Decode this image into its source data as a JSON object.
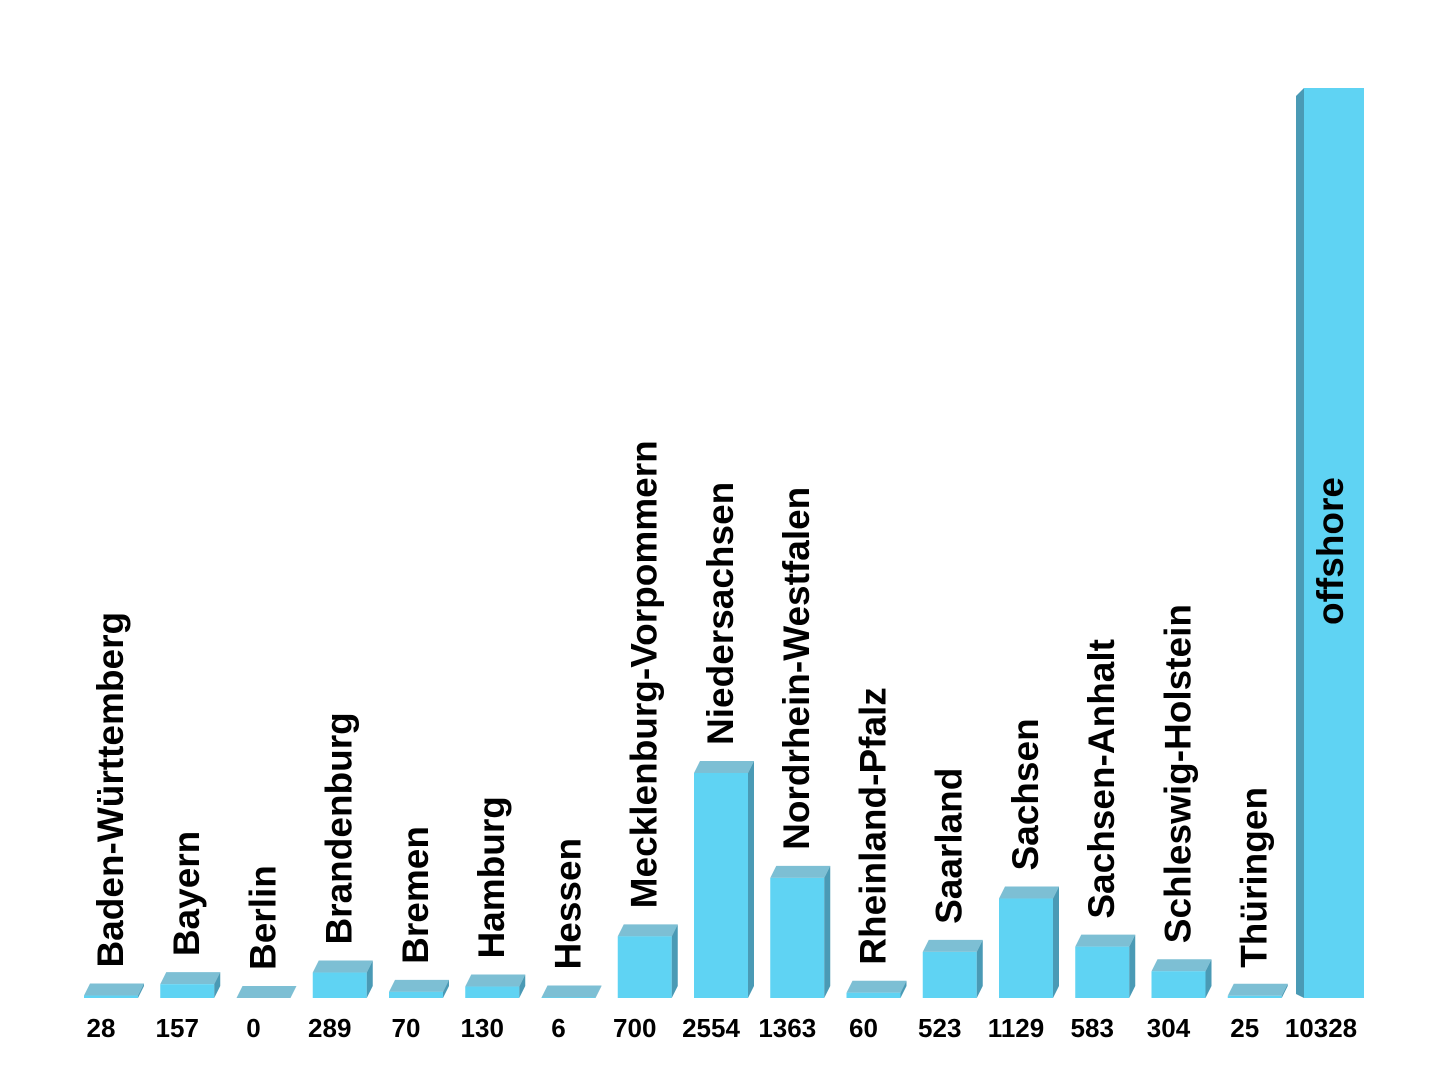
{
  "colors": {
    "bar_front": "#5fd3f3",
    "bar_top": "#7dbfd4",
    "bar_side": "#4a9ab5",
    "text": "#000000",
    "background": "#ffffff"
  },
  "chart_data": {
    "type": "bar",
    "categories": [
      "Baden-Württemberg",
      "Bayern",
      "Berlin",
      "Brandenburg",
      "Bremen",
      "Hamburg",
      "Hessen",
      "Mecklenburg-Vorpommern",
      "Niedersachsen",
      "Nordrhein-Westfalen",
      "Rheinland-Pfalz",
      "Saarland",
      "Sachsen",
      "Sachsen-Anhalt",
      "Schleswig-Holstein",
      "Thüringen",
      "offshore"
    ],
    "values": [
      28,
      157,
      0,
      289,
      70,
      130,
      6,
      700,
      2554,
      1363,
      60,
      523,
      1129,
      583,
      304,
      25,
      10328
    ],
    "value_labels": [
      "28",
      "157",
      "0",
      "289",
      "70",
      "130",
      "6",
      "700",
      "2554",
      "1363",
      "60",
      "523",
      "1129",
      "583",
      "304",
      "25",
      "10328"
    ],
    "title": "",
    "xlabel": "",
    "ylabel": "",
    "ylim": [
      0,
      10328
    ],
    "grid": false,
    "legend": "none",
    "labels_rotated": true
  }
}
